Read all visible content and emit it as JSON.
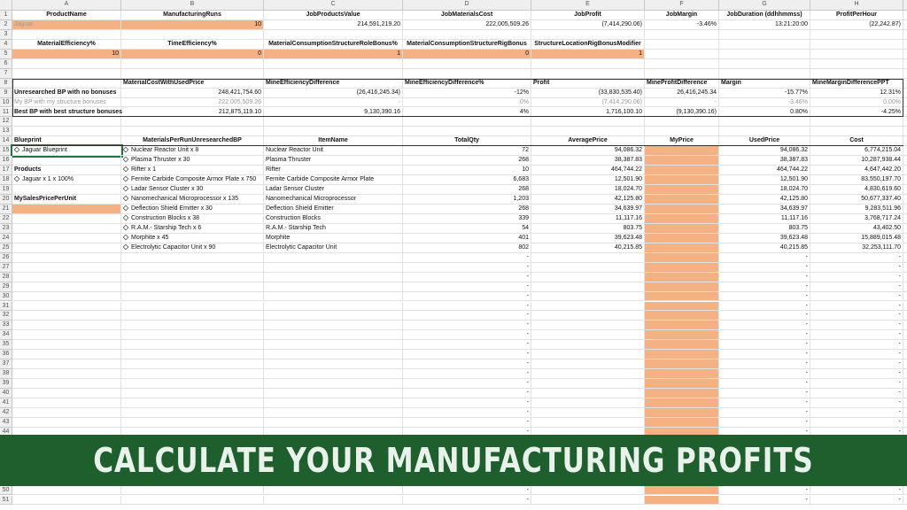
{
  "sheet": {
    "columns": [
      "A",
      "B",
      "C",
      "D",
      "E",
      "F",
      "G",
      "H"
    ],
    "rows": [
      {
        "num": 1,
        "cells": [
          "ProductName",
          "ManufacturingRuns",
          "JobProductsValue",
          "JobMaterialsCost",
          "JobProfit",
          "JobMargin",
          "JobDuration (ddhhmmss)",
          "ProfitPerHour"
        ]
      },
      {
        "num": 2,
        "cells": [
          "Jaguar",
          "10",
          "214,591,219.20",
          "222,005,509.26",
          "(7,414,290.06)",
          "-3.46%",
          "13:21:20:00",
          "(22,242.87)"
        ]
      },
      {
        "num": 3,
        "cells": [
          null,
          null,
          null,
          null,
          null,
          null,
          null,
          null
        ]
      },
      {
        "num": 4,
        "cells": [
          "MaterialEfficiency%",
          "TimeEfficiency%",
          "MaterialConsumptionStructureRoleBonus%",
          "MaterialConsumptionStructureRigBonus",
          "StructureLocationRigBonusModifier",
          null,
          null,
          null
        ]
      },
      {
        "num": 5,
        "cells": [
          "10",
          "0",
          "1",
          "0",
          "1",
          null,
          null,
          null
        ]
      },
      {
        "num": 6,
        "cells": [
          null,
          null,
          null,
          null,
          null,
          null,
          null,
          null
        ]
      },
      {
        "num": 7,
        "cells": [
          null,
          null,
          null,
          null,
          null,
          null,
          null,
          null
        ]
      },
      {
        "num": 8,
        "cells": [
          null,
          "MaterialCostWithUsedPrice",
          "MineEfficiencyDifference",
          "MineEfficiencyDifference%",
          "Profit",
          "MineProfitDifference",
          "Margin",
          "MineMarginDifferencePPT"
        ]
      },
      {
        "num": 9,
        "cells": [
          "Unresearched BP with no bonuses",
          "248,421,754.60",
          "(26,416,245.34)",
          "-12%",
          "(33,830,535.40)",
          "26,416,245.34",
          "-15.77%",
          "12.31%"
        ]
      },
      {
        "num": 10,
        "cells": [
          "My BP with my structure bonuses",
          "222,005,509.26",
          "-",
          "0%",
          "(7,414,290.06)",
          "-",
          "-3.46%",
          "0.00%"
        ]
      },
      {
        "num": 11,
        "cells": [
          "Best BP with best structure bonuses",
          "212,875,119.10",
          "9,130,390.16",
          "4%",
          "1,716,100.10",
          "(9,130,390.16)",
          "0.80%",
          "-4.25%"
        ]
      },
      {
        "num": 12,
        "cells": [
          null,
          null,
          null,
          null,
          null,
          null,
          null,
          null
        ]
      },
      {
        "num": 13,
        "cells": [
          null,
          null,
          null,
          null,
          null,
          null,
          null,
          null
        ]
      },
      {
        "num": 14,
        "cells": [
          "Blueprint",
          "MaterialsPerRunUnresearchedBP",
          "ItemName",
          "TotalQty",
          "AveragePrice",
          "MyPrice",
          "UsedPrice",
          "Cost"
        ]
      },
      {
        "num": 15,
        "cells": [
          "Jaguar Blueprint",
          "Nuclear Reactor Unit x 8",
          "Nuclear Reactor Unit",
          "72",
          "94,086.32",
          null,
          "94,086.32",
          "6,774,215.04"
        ]
      },
      {
        "num": 16,
        "cells": [
          null,
          "Plasma Thruster x 30",
          "Plasma Thruster",
          "268",
          "38,387.83",
          null,
          "38,387.83",
          "10,287,938.44"
        ]
      },
      {
        "num": 17,
        "cells": [
          "Products",
          "Rifter x 1",
          "Rifter",
          "10",
          "464,744.22",
          null,
          "464,744.22",
          "4,647,442.20"
        ]
      },
      {
        "num": 18,
        "cells": [
          "Jaguar x 1 x 100%",
          "Fernite Carbide Composite Armor Plate x 750",
          "Fernite Carbide Composite Armor Plate",
          "6,683",
          "12,501.90",
          null,
          "12,501.90",
          "83,550,197.70"
        ]
      },
      {
        "num": 19,
        "cells": [
          null,
          "Ladar Sensor Cluster x 30",
          "Ladar Sensor Cluster",
          "268",
          "18,024.70",
          null,
          "18,024.70",
          "4,830,619.60"
        ]
      },
      {
        "num": 20,
        "cells": [
          "MySalesPricePerUnit",
          "Nanomechanical Microprocessor x 135",
          "Nanomechanical Microprocessor",
          "1,203",
          "42,125.80",
          null,
          "42,125.80",
          "50,677,337.40"
        ]
      },
      {
        "num": 21,
        "cells": [
          null,
          "Deflection Shield Emitter x 30",
          "Deflection Shield Emitter",
          "268",
          "34,639.97",
          null,
          "34,639.97",
          "9,283,511.96"
        ]
      },
      {
        "num": 22,
        "cells": [
          null,
          "Construction Blocks x 38",
          "Construction Blocks",
          "339",
          "11,117.16",
          null,
          "11,117.16",
          "3,768,717.24"
        ]
      },
      {
        "num": 23,
        "cells": [
          null,
          "R.A.M.- Starship Tech x 6",
          "R.A.M.- Starship Tech",
          "54",
          "803.75",
          null,
          "803.75",
          "43,402.50"
        ]
      },
      {
        "num": 24,
        "cells": [
          null,
          "Morphite x 45",
          "Morphite",
          "401",
          "39,623.48",
          null,
          "39,623.48",
          "15,889,015.48"
        ]
      },
      {
        "num": 25,
        "cells": [
          null,
          "Electrolytic Capacitor Unit x 90",
          "Electrolytic Capacitor Unit",
          "802",
          "40,215.85",
          null,
          "40,215.85",
          "32,253,111.70"
        ]
      },
      {
        "num": 26,
        "cells": [
          null,
          null,
          null,
          "-",
          null,
          null,
          "-",
          "-"
        ]
      },
      {
        "num": 27,
        "cells": [
          null,
          null,
          null,
          "-",
          null,
          null,
          "-",
          "-"
        ]
      },
      {
        "num": 28,
        "cells": [
          null,
          null,
          null,
          "-",
          null,
          null,
          "-",
          "-"
        ]
      },
      {
        "num": 29,
        "cells": [
          null,
          null,
          null,
          "-",
          null,
          null,
          "-",
          "-"
        ]
      },
      {
        "num": 30,
        "cells": [
          null,
          null,
          null,
          "-",
          null,
          null,
          "-",
          "-"
        ]
      },
      {
        "num": 31,
        "cells": [
          null,
          null,
          null,
          "-",
          null,
          null,
          "-",
          "-"
        ]
      },
      {
        "num": 32,
        "cells": [
          null,
          null,
          null,
          "-",
          null,
          null,
          "-",
          "-"
        ]
      },
      {
        "num": 33,
        "cells": [
          null,
          null,
          null,
          "-",
          null,
          null,
          "-",
          "-"
        ]
      },
      {
        "num": 34,
        "cells": [
          null,
          null,
          null,
          "-",
          null,
          null,
          "-",
          "-"
        ]
      },
      {
        "num": 35,
        "cells": [
          null,
          null,
          null,
          "-",
          null,
          null,
          "-",
          "-"
        ]
      },
      {
        "num": 36,
        "cells": [
          null,
          null,
          null,
          "-",
          null,
          null,
          "-",
          "-"
        ]
      },
      {
        "num": 37,
        "cells": [
          null,
          null,
          null,
          "-",
          null,
          null,
          "-",
          "-"
        ]
      },
      {
        "num": 38,
        "cells": [
          null,
          null,
          null,
          "-",
          null,
          null,
          "-",
          "-"
        ]
      },
      {
        "num": 39,
        "cells": [
          null,
          null,
          null,
          "-",
          null,
          null,
          "-",
          "-"
        ]
      },
      {
        "num": 40,
        "cells": [
          null,
          null,
          null,
          "-",
          null,
          null,
          "-",
          "-"
        ]
      },
      {
        "num": 41,
        "cells": [
          null,
          null,
          null,
          "-",
          null,
          null,
          "-",
          "-"
        ]
      },
      {
        "num": 42,
        "cells": [
          null,
          null,
          null,
          "-",
          null,
          null,
          "-",
          "-"
        ]
      },
      {
        "num": 43,
        "cells": [
          null,
          null,
          null,
          "-",
          null,
          null,
          "-",
          "-"
        ]
      },
      {
        "num": 44,
        "cells": [
          null,
          null,
          null,
          "-",
          null,
          null,
          "-",
          "-"
        ]
      },
      {
        "num": 50,
        "cells": [
          null,
          null,
          null,
          "-",
          null,
          null,
          "-",
          "-"
        ]
      },
      {
        "num": 51,
        "cells": [
          null,
          null,
          null,
          "-",
          null,
          null,
          "-",
          "-"
        ]
      }
    ]
  },
  "banner": "CALCULATE YOUR MANUFACTURING PROFITS"
}
